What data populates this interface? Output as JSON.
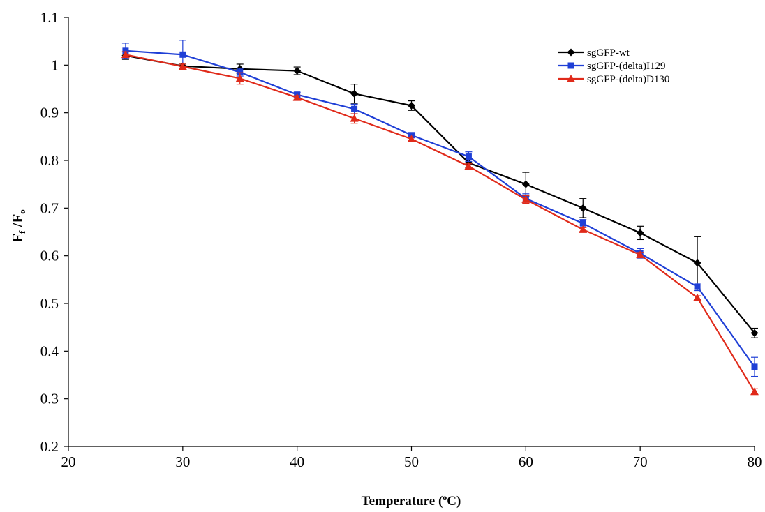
{
  "chart_data": {
    "type": "line",
    "title": "",
    "xlabel": "Temperature (",
    "xlabel_sup": "o",
    "xlabel_end": "C)",
    "ylabel_main_1": "F",
    "ylabel_sub_1": "f",
    "ylabel_sep": " /",
    "ylabel_main_2": "F",
    "ylabel_sub_2": "o",
    "xlim": [
      20,
      80
    ],
    "ylim": [
      0.2,
      1.1
    ],
    "x_ticks": [
      "20",
      "30",
      "40",
      "50",
      "60",
      "70",
      "80"
    ],
    "y_ticks": [
      "0.2",
      "0.3",
      "0.4",
      "0.5",
      "0.6",
      "0.7",
      "0.8",
      "0.9",
      "1",
      "1.1"
    ],
    "grid": false,
    "legend_position": "top-right",
    "x": [
      25,
      30,
      35,
      40,
      45,
      50,
      55,
      60,
      65,
      70,
      75,
      80
    ],
    "series": [
      {
        "name": "sgGFP-wt",
        "color": "#000000",
        "marker": "diamond",
        "values": [
          1.02,
          0.998,
          0.992,
          0.988,
          0.94,
          0.915,
          0.795,
          0.75,
          0.7,
          0.648,
          0.585,
          0.438
        ],
        "errors": [
          0.008,
          0.006,
          0.01,
          0.008,
          0.02,
          0.01,
          0.01,
          0.025,
          0.02,
          0.014,
          0.055,
          0.01
        ]
      },
      {
        "name": "sgGFP-(delta)I129",
        "color": "#1f3fd6",
        "marker": "square",
        "values": [
          1.03,
          1.022,
          0.985,
          0.938,
          0.908,
          0.853,
          0.808,
          0.72,
          0.668,
          0.605,
          0.535,
          0.367
        ],
        "errors": [
          0.016,
          0.03,
          0.008,
          0.005,
          0.01,
          0.005,
          0.01,
          0.01,
          0.008,
          0.01,
          0.008,
          0.02
        ]
      },
      {
        "name": "sgGFP-(delta)D130",
        "color": "#e02a1a",
        "marker": "triangle",
        "values": [
          1.022,
          0.997,
          0.972,
          0.932,
          0.888,
          0.845,
          0.788,
          0.718,
          0.655,
          0.602,
          0.512,
          0.315
        ],
        "errors": [
          0.006,
          0.005,
          0.012,
          0.004,
          0.01,
          0.004,
          0.005,
          0.008,
          0.004,
          0.005,
          0.004,
          0.006
        ]
      }
    ]
  }
}
